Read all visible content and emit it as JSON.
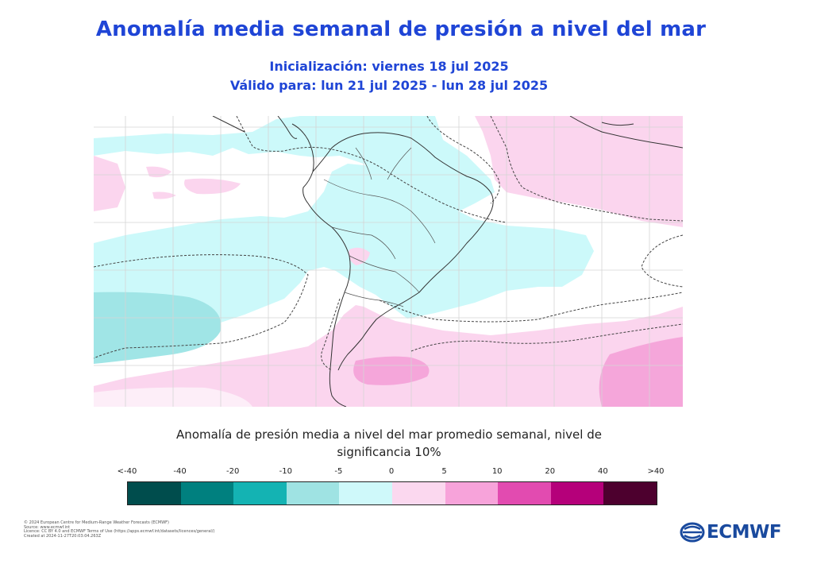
{
  "header": {
    "title": "Anomalía  media semanal de presión a nivel del mar",
    "init": "Inicialización: viernes 18 jul 2025",
    "valid": "Válido para: lun 21 jul 2025 - lun 28 jul 2025"
  },
  "map": {
    "region": "South America",
    "field": "mean sea level pressure anomaly",
    "colors": {
      "neg_5_0": "#ccf9fa",
      "neg_10_5": "#a0e5e6",
      "pos_0_5": "#fbd5ee",
      "pos_5_10": "#f5a6da",
      "land_border": "#333333",
      "grid": "#d0d0d0",
      "significance_contour": "#444444"
    }
  },
  "caption": "Anomalía de presión media a nivel del mar promedio semanal, nivel de significancia 10%",
  "colorbar": {
    "labels": [
      "<-40",
      "-40",
      "-20",
      "-10",
      "-5",
      "0",
      "5",
      "10",
      "20",
      "40",
      ">40"
    ],
    "colors": [
      "#004d4d",
      "#00807f",
      "#14b3b3",
      "#9fe3e3",
      "#cff9fa",
      "#fbd8ef",
      "#f7a3da",
      "#e24bb0",
      "#b5007a",
      "#4d002e"
    ]
  },
  "footer": {
    "lines": [
      "© 2024 European Centre for Medium-Range Weather Forecasts (ECMWF)",
      "Source: www.ecmwf.int",
      "Licence: CC BY 4.0 and ECMWF Terms of Use (https://apps.ecmwf.int/datasets/licences/general/)",
      "Created at 2024-11-27T20:03:04.263Z"
    ]
  },
  "logo": {
    "text": "ECMWF"
  }
}
